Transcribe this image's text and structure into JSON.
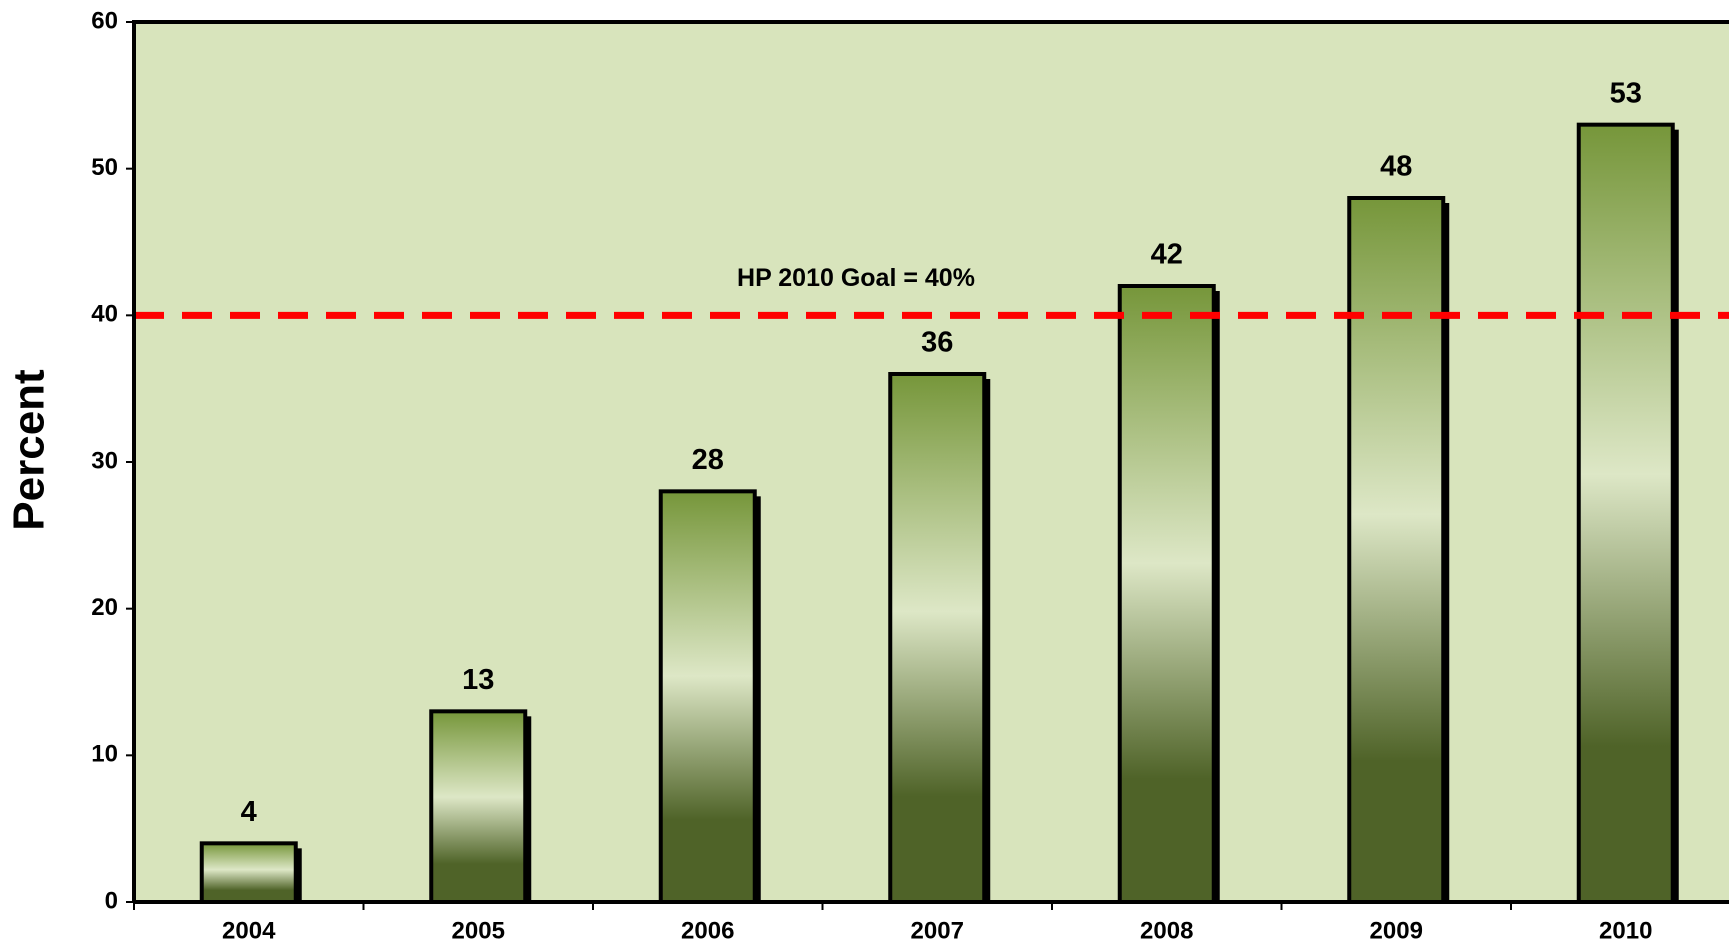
{
  "chart_data": {
    "type": "bar",
    "ylabel": "Percent",
    "categories": [
      "2004",
      "2005",
      "2006",
      "2007",
      "2008",
      "2009",
      "2010"
    ],
    "values": [
      4,
      13,
      28,
      36,
      42,
      48,
      53
    ],
    "color": "#7a9a3f",
    "ylim": [
      0,
      60
    ],
    "yticks": [
      0,
      10,
      20,
      30,
      40,
      50,
      60
    ],
    "goal": {
      "value": 40,
      "label": "HP 2010 Goal = 40%",
      "color": "#ff0000"
    },
    "background": "#d8e4bc"
  }
}
